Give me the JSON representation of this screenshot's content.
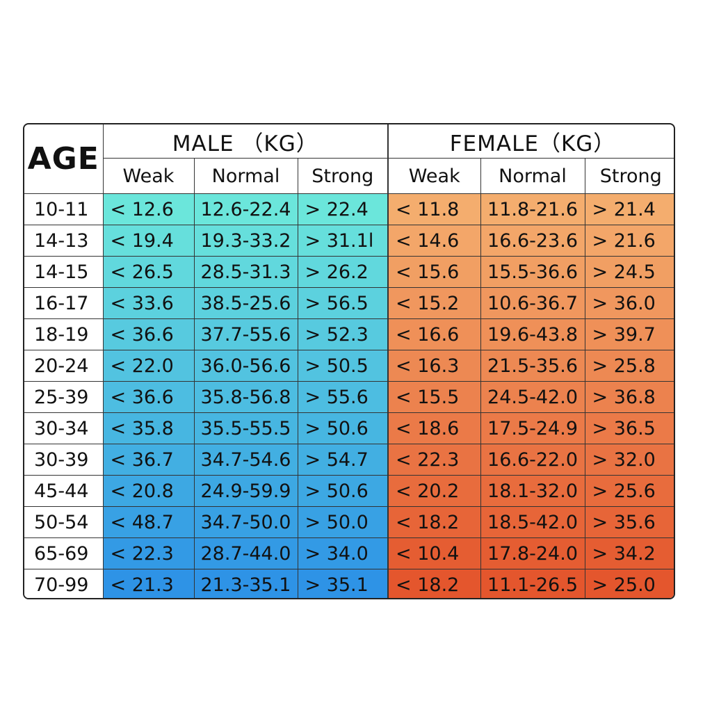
{
  "table": {
    "age_header": "AGE",
    "male_header": "MALE （KG）",
    "female_header": "FEMALE（KG）",
    "sub_headers": [
      "Weak",
      "Normal",
      "Strong",
      "Weak",
      "Normal",
      "Strong"
    ],
    "colors": {
      "male_top": "#6be6db",
      "male_bottom": "#2e93e6",
      "female_top": "#f4ad6e",
      "female_bottom": "#e4562d"
    },
    "rows": [
      {
        "age": "10-11",
        "cells": [
          "< 12.6",
          "12.6-22.4",
          "> 22.4",
          "< 11.8",
          "11.8-21.6",
          "> 21.4"
        ]
      },
      {
        "age": "14-13",
        "cells": [
          "< 19.4",
          "19.3-33.2",
          "> 31.1l",
          "< 14.6",
          "16.6-23.6",
          "> 21.6"
        ]
      },
      {
        "age": "14-15",
        "cells": [
          "< 26.5",
          "28.5-31.3",
          "> 26.2",
          "< 15.6",
          "15.5-36.6",
          "> 24.5"
        ]
      },
      {
        "age": "16-17",
        "cells": [
          "< 33.6",
          "38.5-25.6",
          "> 56.5",
          "< 15.2",
          "10.6-36.7",
          "> 36.0"
        ]
      },
      {
        "age": "18-19",
        "cells": [
          "< 36.6",
          "37.7-55.6",
          "> 52.3",
          "< 16.6",
          "19.6-43.8",
          "> 39.7"
        ]
      },
      {
        "age": "20-24",
        "cells": [
          "< 22.0",
          "36.0-56.6",
          "> 50.5",
          "< 16.3",
          "21.5-35.6",
          "> 25.8"
        ]
      },
      {
        "age": "25-39",
        "cells": [
          "< 36.6",
          "35.8-56.8",
          "> 55.6",
          "< 15.5",
          "24.5-42.0",
          "> 36.8"
        ]
      },
      {
        "age": "30-34",
        "cells": [
          "< 35.8",
          "35.5-55.5",
          "> 50.6",
          "< 18.6",
          "17.5-24.9",
          "> 36.5"
        ]
      },
      {
        "age": "30-39",
        "cells": [
          "< 36.7",
          "34.7-54.6",
          "> 54.7",
          "< 22.3",
          "16.6-22.0",
          "> 32.0"
        ]
      },
      {
        "age": "45-44",
        "cells": [
          "< 20.8",
          "24.9-59.9",
          "> 50.6",
          "< 20.2",
          "18.1-32.0",
          "> 25.6"
        ]
      },
      {
        "age": "50-54",
        "cells": [
          "< 48.7",
          "34.7-50.0",
          "> 50.0",
          "< 18.2",
          "18.5-42.0",
          "> 35.6"
        ]
      },
      {
        "age": "65-69",
        "cells": [
          "< 22.3",
          "28.7-44.0",
          "> 34.0",
          "< 10.4",
          "17.8-24.0",
          "> 34.2"
        ]
      },
      {
        "age": "70-99",
        "cells": [
          "< 21.3",
          "21.3-35.1",
          "> 35.1",
          "< 18.2",
          "11.1-26.5",
          "> 25.0"
        ]
      }
    ]
  }
}
